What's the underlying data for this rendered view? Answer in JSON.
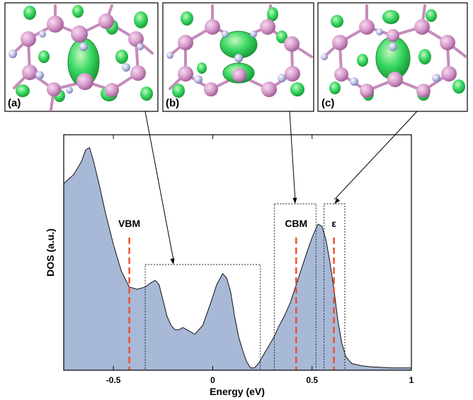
{
  "panels": [
    {
      "label": "(a)"
    },
    {
      "label": "(b)"
    },
    {
      "label": "(c)"
    }
  ],
  "colors": {
    "fill": "#a7b9d6",
    "marker": "#f04b2a",
    "atom_pink": "#d79acb",
    "atom_blue": "#a8aed8",
    "orbital": "#2ed65a"
  },
  "chart_data": {
    "type": "area",
    "xlabel": "Energy (eV)",
    "ylabel": "DOS (a.u.)",
    "xlim": [
      -0.75,
      1.0
    ],
    "ylim": [
      0,
      1
    ],
    "xticks": [
      -0.5,
      0,
      0.5,
      1
    ],
    "xtick_labels": [
      "-0.5",
      "0",
      "0.5",
      "1"
    ],
    "grid": false,
    "series": [
      {
        "x": [
          -0.75,
          -0.7,
          -0.66,
          -0.64,
          -0.62,
          -0.6,
          -0.57,
          -0.54,
          -0.5,
          -0.46,
          -0.42,
          -0.38,
          -0.34,
          -0.31,
          -0.29,
          -0.27,
          -0.25,
          -0.23,
          -0.21,
          -0.19,
          -0.17,
          -0.15,
          -0.13,
          -0.11,
          -0.09,
          -0.07,
          -0.05,
          -0.03,
          -0.01,
          0.02,
          0.05,
          0.07,
          0.09,
          0.11,
          0.13,
          0.15,
          0.17,
          0.19,
          0.21,
          0.23,
          0.25,
          0.27,
          0.29,
          0.31,
          0.33,
          0.36,
          0.39,
          0.42,
          0.45,
          0.48,
          0.5,
          0.52,
          0.53,
          0.55,
          0.57,
          0.59,
          0.61,
          0.63,
          0.65,
          0.67,
          0.7,
          0.75,
          0.8,
          0.9,
          1.0
        ],
        "y": [
          0.83,
          0.87,
          0.93,
          0.98,
          0.99,
          0.93,
          0.82,
          0.7,
          0.56,
          0.44,
          0.37,
          0.36,
          0.37,
          0.39,
          0.4,
          0.38,
          0.31,
          0.24,
          0.2,
          0.18,
          0.18,
          0.19,
          0.18,
          0.17,
          0.16,
          0.18,
          0.2,
          0.25,
          0.3,
          0.38,
          0.43,
          0.41,
          0.35,
          0.24,
          0.15,
          0.09,
          0.04,
          0.01,
          0.01,
          0.03,
          0.06,
          0.09,
          0.12,
          0.15,
          0.19,
          0.24,
          0.3,
          0.38,
          0.46,
          0.54,
          0.59,
          0.63,
          0.65,
          0.64,
          0.58,
          0.48,
          0.36,
          0.22,
          0.12,
          0.06,
          0.03,
          0.02,
          0.015,
          0.01,
          0.01
        ]
      }
    ],
    "markers": [
      {
        "x": -0.42,
        "label": "VBM"
      },
      {
        "x": 0.42,
        "label": "CBM"
      },
      {
        "x": 0.61,
        "label": "ε"
      }
    ],
    "regions": [
      {
        "x0": -0.34,
        "x1": 0.24,
        "ymax": 0.47,
        "panel": "(a)"
      },
      {
        "x0": 0.31,
        "x1": 0.52,
        "ymax": 0.74,
        "panel": "(b)"
      },
      {
        "x0": 0.56,
        "x1": 0.665,
        "ymax": 0.74,
        "panel": "(c)"
      }
    ]
  }
}
